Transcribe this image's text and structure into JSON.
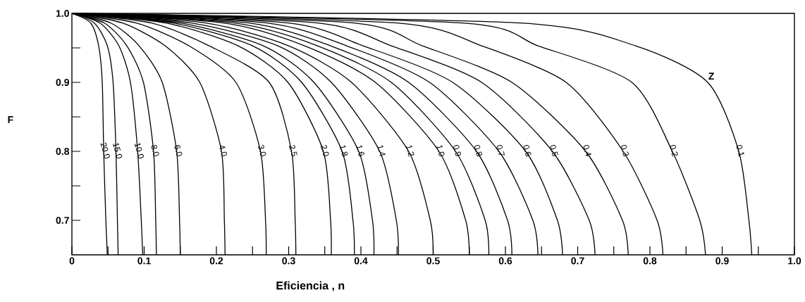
{
  "chart_data": {
    "type": "line",
    "xlabel": "Eficiencia , n",
    "ylabel": "F",
    "marker": "none",
    "xlim": [
      0,
      1
    ],
    "ylim": [
      0.65,
      1
    ],
    "xticks": [
      0,
      {
        "value": 0.05,
        "label": null
      },
      0.1,
      {
        "value": 0.15,
        "label": null
      },
      0.2,
      {
        "value": 0.25,
        "label": null
      },
      0.3,
      {
        "value": 0.35,
        "label": null
      },
      0.4,
      {
        "value": 0.45,
        "label": null
      },
      0.5,
      {
        "value": 0.55,
        "label": null
      },
      0.6,
      {
        "value": 0.65,
        "label": null
      },
      0.7,
      {
        "value": 0.75,
        "label": null
      },
      0.8,
      {
        "value": 0.85,
        "label": null
      },
      0.9,
      {
        "value": 0.95,
        "label": null
      },
      {
        "value": 1,
        "label": "1.0"
      }
    ],
    "yticks": [
      0.7,
      {
        "value": 0.75,
        "label": null
      },
      0.8,
      {
        "value": 0.85,
        "label": null
      },
      0.9,
      {
        "value": 0.95,
        "label": null
      },
      {
        "value": 1,
        "label": "1.0"
      }
    ],
    "annotations": [
      "Z"
    ],
    "series": [
      {
        "name": "20.0",
        "color": "#000000",
        "x": [
          0,
          0.026,
          0.037,
          0.042,
          0.044,
          0.047,
          0.049
        ],
        "values": [
          1,
          0.986,
          0.953,
          0.9,
          0.8,
          0.7,
          0.65
        ]
      },
      {
        "name": "15.0",
        "color": "#000000",
        "x": [
          0,
          0.031,
          0.049,
          0.057,
          0.061,
          0.063,
          0.064
        ],
        "values": [
          1,
          0.986,
          0.953,
          0.9,
          0.8,
          0.7,
          0.65
        ]
      },
      {
        "name": "10.0",
        "color": "#000000",
        "x": [
          0,
          0.039,
          0.065,
          0.081,
          0.091,
          0.096,
          0.098
        ],
        "values": [
          1,
          0.986,
          0.953,
          0.9,
          0.8,
          0.7,
          0.65
        ]
      },
      {
        "name": "8.0",
        "color": "#000000",
        "x": [
          0,
          0.045,
          0.076,
          0.099,
          0.113,
          0.116,
          0.117
        ],
        "values": [
          1,
          0.986,
          0.953,
          0.9,
          0.8,
          0.7,
          0.65
        ]
      },
      {
        "name": "6.0",
        "color": "#000000",
        "x": [
          0,
          0.054,
          0.093,
          0.125,
          0.145,
          0.149,
          0.15
        ],
        "values": [
          1,
          0.986,
          0.953,
          0.9,
          0.8,
          0.7,
          0.65
        ]
      },
      {
        "name": "4.0",
        "color": "#000000",
        "x": [
          0,
          0.07,
          0.129,
          0.177,
          0.207,
          0.211,
          0.212
        ],
        "values": [
          1,
          0.986,
          0.953,
          0.9,
          0.8,
          0.7,
          0.65
        ]
      },
      {
        "name": "3.0",
        "color": "#000000",
        "x": [
          0,
          0.089,
          0.162,
          0.227,
          0.261,
          0.268,
          0.269
        ],
        "values": [
          1,
          0.986,
          0.953,
          0.9,
          0.8,
          0.7,
          0.65
        ]
      },
      {
        "name": "2.5",
        "color": "#000000",
        "x": [
          0,
          0.11,
          0.19,
          0.273,
          0.304,
          0.309,
          0.31
        ],
        "values": [
          1,
          0.986,
          0.953,
          0.9,
          0.8,
          0.7,
          0.65
        ]
      },
      {
        "name": "2.0",
        "color": "#000000",
        "x": [
          0,
          0.13,
          0.23,
          0.299,
          0.348,
          0.358,
          0.359
        ],
        "values": [
          1,
          0.986,
          0.953,
          0.9,
          0.8,
          0.7,
          0.65
        ]
      },
      {
        "name": "1.8",
        "color": "#000000",
        "x": [
          0,
          0.14,
          0.25,
          0.318,
          0.374,
          0.389,
          0.391
        ],
        "values": [
          1,
          0.986,
          0.953,
          0.9,
          0.8,
          0.7,
          0.65
        ]
      },
      {
        "name": "1.6",
        "color": "#000000",
        "x": [
          0,
          0.15,
          0.265,
          0.335,
          0.397,
          0.416,
          0.418
        ],
        "values": [
          1,
          0.986,
          0.953,
          0.9,
          0.8,
          0.7,
          0.65
        ]
      },
      {
        "name": "1.4",
        "color": "#000000",
        "x": [
          0,
          0.165,
          0.285,
          0.359,
          0.426,
          0.449,
          0.452
        ],
        "values": [
          1,
          0.986,
          0.953,
          0.9,
          0.8,
          0.7,
          0.65
        ]
      },
      {
        "name": "1.2",
        "color": "#000000",
        "x": [
          0,
          0.185,
          0.3,
          0.387,
          0.466,
          0.496,
          0.5
        ],
        "values": [
          1,
          0.986,
          0.953,
          0.9,
          0.8,
          0.7,
          0.65
        ]
      },
      {
        "name": "1.0",
        "color": "#000000",
        "x": [
          0,
          0.21,
          0.322,
          0.42,
          0.508,
          0.545,
          0.55
        ],
        "values": [
          1,
          0.986,
          0.953,
          0.9,
          0.8,
          0.7,
          0.65
        ]
      },
      {
        "name": "0.9",
        "color": "#000000",
        "x": [
          0,
          0.225,
          0.34,
          0.442,
          0.531,
          0.572,
          0.577
        ],
        "values": [
          1,
          0.986,
          0.953,
          0.9,
          0.8,
          0.7,
          0.65
        ]
      },
      {
        "name": "0.8",
        "color": "#000000",
        "x": [
          0,
          0.245,
          0.358,
          0.466,
          0.56,
          0.603,
          0.609
        ],
        "values": [
          1,
          0.986,
          0.953,
          0.9,
          0.8,
          0.7,
          0.65
        ]
      },
      {
        "name": "0.7",
        "color": "#000000",
        "x": [
          0,
          0.27,
          0.38,
          0.495,
          0.591,
          0.638,
          0.645
        ],
        "values": [
          1,
          0.986,
          0.953,
          0.9,
          0.8,
          0.7,
          0.65
        ]
      },
      {
        "name": "0.6",
        "color": "#000000",
        "x": [
          0,
          0.3,
          0.403,
          0.527,
          0.628,
          0.672,
          0.679
        ],
        "values": [
          1,
          0.986,
          0.953,
          0.9,
          0.8,
          0.7,
          0.65
        ]
      },
      {
        "name": "0.5",
        "color": "#000000",
        "x": [
          0,
          0.34,
          0.442,
          0.567,
          0.665,
          0.716,
          0.724
        ],
        "values": [
          1,
          0.986,
          0.953,
          0.9,
          0.8,
          0.7,
          0.65
        ]
      },
      {
        "name": "0.4",
        "color": "#000000",
        "x": [
          0,
          0.39,
          0.485,
          0.609,
          0.711,
          0.762,
          0.77
        ],
        "values": [
          1,
          0.986,
          0.953,
          0.9,
          0.8,
          0.7,
          0.65
        ]
      },
      {
        "name": "0.3",
        "color": "#000000",
        "x": [
          0,
          0.45,
          0.567,
          0.684,
          0.763,
          0.81,
          0.818
        ],
        "values": [
          1,
          0.986,
          0.953,
          0.9,
          0.8,
          0.7,
          0.65
        ]
      },
      {
        "name": "0.2",
        "color": "#000000",
        "x": [
          0,
          0.54,
          0.645,
          0.775,
          0.831,
          0.869,
          0.877
        ],
        "values": [
          1,
          0.986,
          0.953,
          0.9,
          0.8,
          0.7,
          0.65
        ]
      },
      {
        "name": "0.1",
        "color": "#000000",
        "x": [
          0,
          0.62,
          0.78,
          0.88,
          0.923,
          0.937,
          0.941
        ],
        "values": [
          1,
          0.986,
          0.953,
          0.9,
          0.8,
          0.7,
          0.65
        ]
      }
    ]
  }
}
